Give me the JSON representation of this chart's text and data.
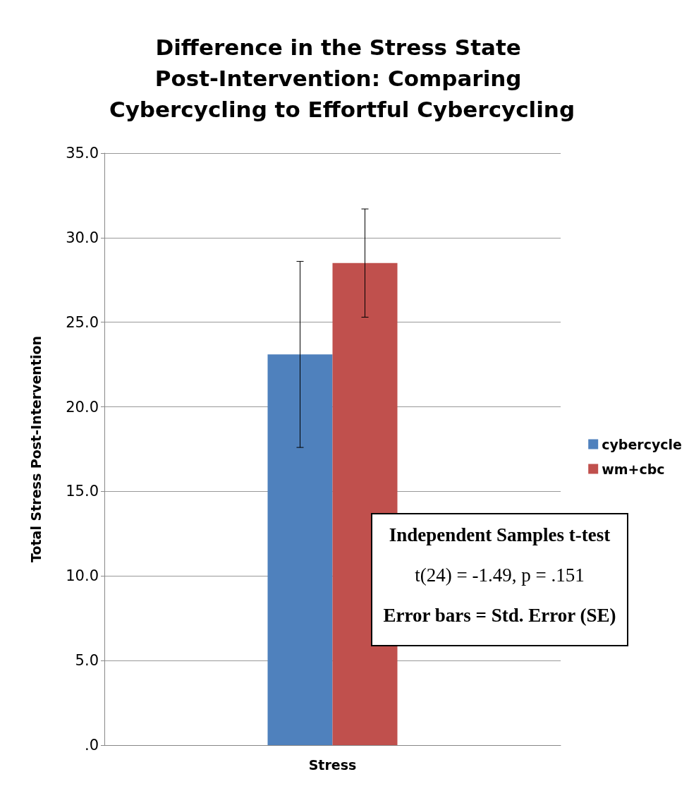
{
  "chart_data": {
    "type": "bar",
    "title": "Difference in the Stress State Post-Intervention: Comparing Cybercycling to Effortful Cybercycling",
    "ylabel": "Total Stress Post-Intervention",
    "categories": [
      "Stress"
    ],
    "series": [
      {
        "name": "cybercycle",
        "color": "#4f81bd",
        "values": [
          23.1
        ],
        "errors": [
          5.5
        ]
      },
      {
        "name": "wm+cbc",
        "color": "#c0504d",
        "values": [
          28.5
        ],
        "errors": [
          3.2
        ]
      }
    ],
    "ylim": [
      0,
      35
    ],
    "yticks": [
      {
        "value": 0,
        "label": ".0"
      },
      {
        "value": 5,
        "label": "5.0"
      },
      {
        "value": 10,
        "label": "10.0"
      },
      {
        "value": 15,
        "label": "15.0"
      },
      {
        "value": 20,
        "label": "20.0"
      },
      {
        "value": 25,
        "label": "25.0"
      },
      {
        "value": 30,
        "label": "30.0"
      },
      {
        "value": 35,
        "label": "35.0"
      }
    ],
    "grid": "y",
    "legend": "right",
    "annotations": [
      "Independent Samples t-test",
      "t(24) = -1.49, p = .151",
      "Error bars = Std. Error (SE)"
    ]
  }
}
